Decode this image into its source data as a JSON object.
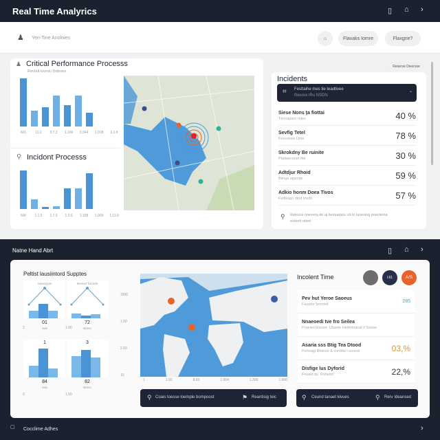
{
  "header": {
    "title": "Real Time Analyrics",
    "icons": [
      "tablet-icon",
      "home-icon",
      "chevron-right-icon"
    ]
  },
  "subheader": {
    "label": "Yen-Tine Anoloies",
    "buttons": [
      "Flavaks Iomre",
      "Flaxgne?"
    ]
  },
  "performance": {
    "title": "Critical Performance Processs",
    "subtitle": "Rovbut ioumic Dobosis",
    "bars": [
      100,
      33,
      40,
      64,
      45,
      65,
      28
    ],
    "ticks": [
      "601",
      "11.2",
      "3.7.3",
      "1.106",
      "3.344",
      "1.018",
      "3.1.6"
    ]
  },
  "incident_process": {
    "title": "Incidont Processs",
    "bars": [
      100,
      25,
      6,
      8,
      54,
      54,
      93
    ],
    "ticks": [
      "600",
      "1.1.5",
      "1.7.5",
      "1.3.6",
      "1.108",
      "1.009",
      "1.11.8"
    ]
  },
  "incidents": {
    "pill": "Reserve Diversse",
    "title": "Incidents",
    "dropdown": {
      "line1": "Festtaihe mes tie teadtivee",
      "line2": "Revore iRu NSDN"
    },
    "rows": [
      {
        "name": "Siese Nons ţa fiottai",
        "sub": "Tknoaparo rides",
        "value": "40 %"
      },
      {
        "name": "Sevfig Tetel",
        "sub": "Feocoees Lims",
        "value": "78 %"
      },
      {
        "name": "Skrokdny Be ruinite",
        "sub": "Plattaeconel Ifid",
        "value": "30 %"
      },
      {
        "name": "Adtdjur Rhoid",
        "sub": "Blinge arponte",
        "value": "59 %"
      },
      {
        "name": "Adkio honm Doea Tivos",
        "sub": "Feltikapo dind toedo",
        "value": "57 %"
      }
    ],
    "footer": "Retozra oneverą do aj bestueppu vå lo kinesing poecteina esteeh oited"
  },
  "alert": {
    "title": "Natne Hand Abrt"
  },
  "supplies": {
    "title": "Peltist lausiintord Supptes",
    "mini": [
      {
        "label": "Sassoyyts",
        "value": "01",
        "sub": "Hdo",
        "bars": [
          45,
          85,
          45
        ],
        "line": true
      },
      {
        "label": "Bresvd Tunnde",
        "value": "72",
        "sub": "Bnsro",
        "bars": [
          30,
          15,
          25
        ],
        "line": true
      },
      {
        "label": "",
        "top": "1",
        "value": "84",
        "sub": "Hdo",
        "bars": [
          40,
          100,
          30
        ]
      },
      {
        "label": "",
        "top": "3",
        "value": "82",
        "sub": "Bnsro",
        "bars": [
          75,
          95,
          70
        ]
      }
    ],
    "side_ticks": [
      "2",
      "1.00",
      "0",
      "1.50"
    ]
  },
  "world": {
    "yticks": [
      "1500",
      "1.00",
      "2.60",
      "10"
    ],
    "xticks": [
      "1",
      "1.03",
      "8.93",
      "1.004",
      "1.300",
      "1.900"
    ],
    "footer_left": "Coais toesse loemple bompoost",
    "footer_right": "Reantisig teic"
  },
  "incident_time": {
    "title": "Incolent Time",
    "avatars": [
      "",
      "l.61",
      "A/S"
    ],
    "rows": [
      {
        "name": "Pev hut Yeroe Saoeus",
        "sub": "Fauptor bnomtif",
        "value": "285",
        "color": "#3aa6b9"
      },
      {
        "name": "Nnaeoedi tve fro Seilea",
        "sub": "Praeles bouset. Ubaole Hinthimacat il Sooas",
        "value": "",
        "color": "#333"
      },
      {
        "name": "Asaria sss Btig Tea Dtood",
        "sub": "Pehnagi Bloesst & contifal l soocol",
        "value": "03,%",
        "color": "#d9962f"
      },
      {
        "name": "Disfige lus Dyforid",
        "sub": "Fesaid qs. Roheitd",
        "value": "22,%",
        "color": "#333"
      }
    ],
    "footer_left": "Ceund tanaet kivues",
    "footer_right": "Rerv Ideansed"
  },
  "bottom": {
    "label": "Cocclime Adhes"
  },
  "colors": {
    "dark": "#1c2130",
    "bar": "#4f9ad8",
    "accent": "#e8622c"
  }
}
